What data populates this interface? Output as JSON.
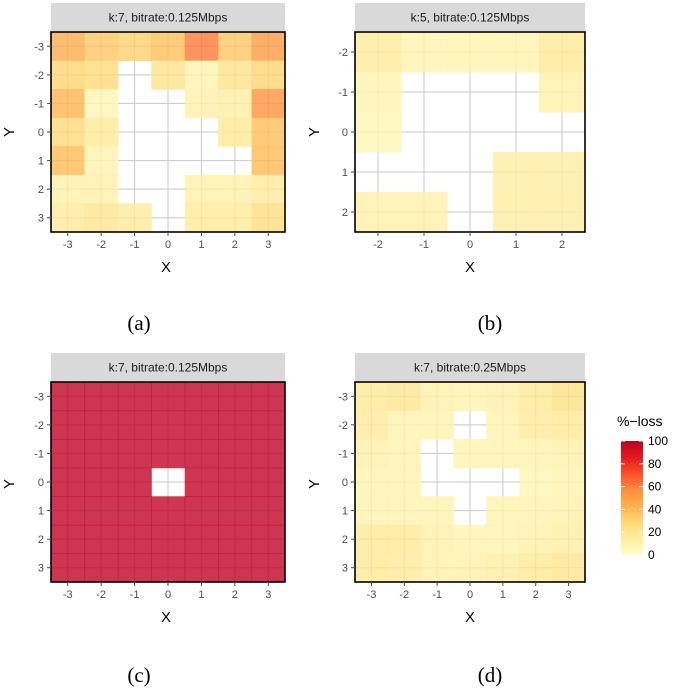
{
  "chart_data": [
    {
      "type": "heatmap",
      "title": "k:7, bitrate:0.125Mbps",
      "caption": "(a)",
      "xlabel": "X",
      "ylabel": "Y",
      "x": [
        -3,
        -2,
        -1,
        0,
        1,
        2,
        3
      ],
      "y": [
        -3,
        -2,
        -1,
        0,
        1,
        2,
        3
      ],
      "xlim": [
        -3.5,
        3.5
      ],
      "ylim": [
        -3.5,
        3.5
      ],
      "values": [
        [
          45,
          35,
          32,
          38,
          62,
          35,
          52
        ],
        [
          30,
          28,
          null,
          22,
          10,
          22,
          30
        ],
        [
          42,
          8,
          null,
          null,
          12,
          14,
          55
        ],
        [
          28,
          18,
          null,
          null,
          null,
          18,
          38
        ],
        [
          40,
          10,
          null,
          null,
          null,
          null,
          40
        ],
        [
          12,
          12,
          null,
          null,
          12,
          12,
          16
        ],
        [
          16,
          20,
          16,
          null,
          16,
          16,
          26
        ]
      ]
    },
    {
      "type": "heatmap",
      "title": "k:5, bitrate:0.125Mbps",
      "caption": "(b)",
      "xlabel": "X",
      "ylabel": "Y",
      "x": [
        -2,
        -1,
        0,
        1,
        2
      ],
      "y": [
        -2,
        -1,
        0,
        1,
        2
      ],
      "xlim": [
        -2.5,
        2.5
      ],
      "ylim": [
        -2.5,
        2.5
      ],
      "values": [
        [
          16,
          10,
          10,
          10,
          18
        ],
        [
          10,
          null,
          null,
          null,
          12
        ],
        [
          8,
          null,
          null,
          null,
          null
        ],
        [
          null,
          null,
          null,
          14,
          14
        ],
        [
          12,
          12,
          null,
          14,
          14
        ]
      ]
    },
    {
      "type": "heatmap",
      "title": "k:7, bitrate:0.125Mbps",
      "caption": "(c)",
      "xlabel": "X",
      "ylabel": "Y",
      "x": [
        -3,
        -2,
        -1,
        0,
        1,
        2,
        3
      ],
      "y": [
        -3,
        -2,
        -1,
        0,
        1,
        2,
        3
      ],
      "xlim": [
        -3.5,
        3.5
      ],
      "ylim": [
        -3.5,
        3.5
      ],
      "values": [
        [
          99,
          99,
          99,
          99,
          99,
          99,
          99
        ],
        [
          99,
          99,
          99,
          98,
          99,
          99,
          99
        ],
        [
          99,
          99,
          99,
          98,
          99,
          99,
          99
        ],
        [
          99,
          99,
          99,
          null,
          98,
          99,
          99
        ],
        [
          99,
          99,
          99,
          98,
          99,
          99,
          99
        ],
        [
          99,
          99,
          99,
          99,
          99,
          99,
          99
        ],
        [
          99,
          99,
          99,
          99,
          99,
          99,
          99
        ]
      ]
    },
    {
      "type": "heatmap",
      "title": "k:7, bitrate:0.25Mbps",
      "caption": "(d)",
      "xlabel": "X",
      "ylabel": "Y",
      "x": [
        -3,
        -2,
        -1,
        0,
        1,
        2,
        3
      ],
      "y": [
        -3,
        -2,
        -1,
        0,
        1,
        2,
        3
      ],
      "xlim": [
        -3.5,
        3.5
      ],
      "ylim": [
        -3.5,
        3.5
      ],
      "values": [
        [
          18,
          20,
          12,
          10,
          12,
          18,
          24
        ],
        [
          16,
          10,
          10,
          null,
          10,
          16,
          18
        ],
        [
          12,
          10,
          null,
          10,
          10,
          10,
          12
        ],
        [
          10,
          10,
          null,
          null,
          null,
          8,
          10
        ],
        [
          10,
          10,
          10,
          null,
          10,
          10,
          12
        ],
        [
          18,
          18,
          12,
          10,
          10,
          12,
          14
        ],
        [
          18,
          16,
          12,
          12,
          14,
          18,
          20
        ]
      ]
    }
  ],
  "legend": {
    "title": "%−loss",
    "ticks": [
      "100",
      "80",
      "60",
      "40",
      "20",
      "0"
    ],
    "tick_values": [
      100,
      80,
      60,
      40,
      20,
      0
    ],
    "range": [
      0,
      100
    ],
    "colors": [
      "#ffffcc",
      "#ffeda0",
      "#fed976",
      "#feb24c",
      "#fd8d3c",
      "#fc4e2a",
      "#e31a1c",
      "#bd0026"
    ]
  },
  "style": {
    "strip_bg": "#d9d9d9",
    "panel_border": "#000000",
    "grid": "#c8c8c8",
    "tick_color": "#4d4d4d",
    "cell_fill_opacity": "0.8"
  }
}
